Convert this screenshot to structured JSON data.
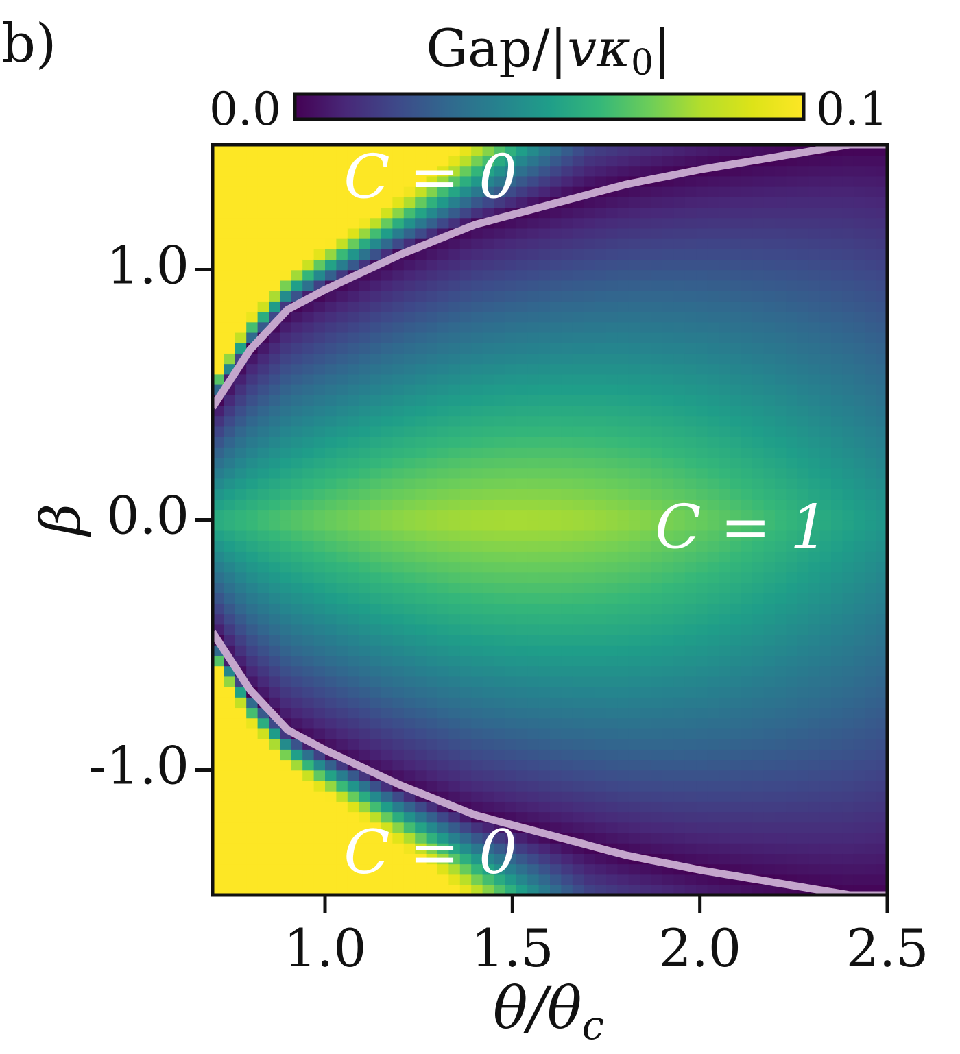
{
  "chart_data": {
    "type": "heatmap",
    "panel_label": "b)",
    "colorbar": {
      "label_main": "Gap/|",
      "label_var": "vκ",
      "label_sub": "0",
      "label_end": "|",
      "min_label": "0.0",
      "max_label": "0.1",
      "vmin": 0.0,
      "vmax": 0.1,
      "colormap": "viridis"
    },
    "xlabel": {
      "main": "θ/θ",
      "sub": "c"
    },
    "ylabel": "β",
    "xlim": [
      0.7,
      2.5
    ],
    "ylim": [
      -1.5,
      1.5
    ],
    "x_ticks": [
      {
        "value": 1.0,
        "label": "1.0"
      },
      {
        "value": 1.5,
        "label": "1.5"
      },
      {
        "value": 2.0,
        "label": "2.0"
      },
      {
        "value": 2.5,
        "label": "2.5"
      }
    ],
    "y_ticks": [
      {
        "value": 1.0,
        "label": "1.0"
      },
      {
        "value": 0.0,
        "label": "0.0"
      },
      {
        "value": -1.0,
        "label": "-1.0"
      }
    ],
    "grid": false,
    "phase_boundary": {
      "color": "#c4a6cc",
      "points": [
        {
          "x": 0.7,
          "beta": 0.45
        },
        {
          "x": 0.8,
          "beta": 0.68
        },
        {
          "x": 0.9,
          "beta": 0.84
        },
        {
          "x": 1.0,
          "beta": 0.92
        },
        {
          "x": 1.2,
          "beta": 1.06
        },
        {
          "x": 1.4,
          "beta": 1.18
        },
        {
          "x": 1.6,
          "beta": 1.26
        },
        {
          "x": 1.8,
          "beta": 1.34
        },
        {
          "x": 2.0,
          "beta": 1.4
        },
        {
          "x": 2.2,
          "beta": 1.45
        },
        {
          "x": 2.4,
          "beta": 1.5
        }
      ]
    },
    "model": {
      "gap_max": 0.079,
      "peak_x": 1.5
    },
    "annotations": [
      {
        "text": "C = 0",
        "x": 1.05,
        "beta": 1.35
      },
      {
        "text": "C = 1",
        "x": 1.88,
        "beta": -0.05
      },
      {
        "text": "C = 0",
        "x": 1.05,
        "beta": -1.35
      }
    ]
  },
  "colors": {
    "axis": "#111111",
    "annotation": "#ffffff"
  }
}
